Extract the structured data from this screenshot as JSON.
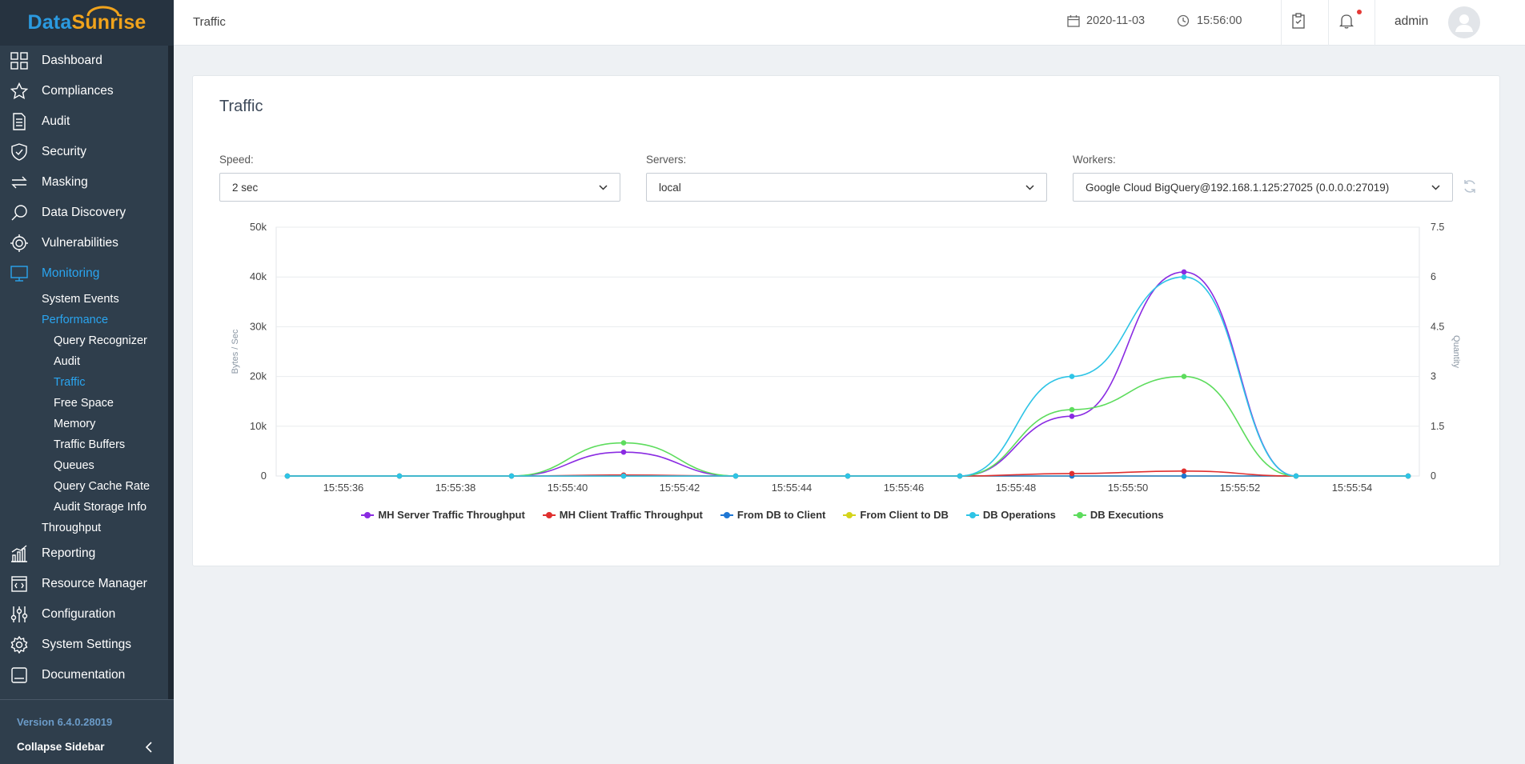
{
  "app": {
    "logo_data": "Data",
    "logo_sunrise": "Sunrise",
    "version": "Version 6.4.0.28019",
    "collapse_label": "Collapse Sidebar"
  },
  "nav": {
    "dashboard": "Dashboard",
    "compliances": "Compliances",
    "audit": "Audit",
    "security": "Security",
    "masking": "Masking",
    "data_discovery": "Data Discovery",
    "vulnerabilities": "Vulnerabilities",
    "monitoring": "Monitoring",
    "system_events": "System Events",
    "performance": "Performance",
    "perf_items": [
      "Query Recognizer",
      "Audit",
      "Traffic",
      "Free Space",
      "Memory",
      "Traffic Buffers",
      "Queues",
      "Query Cache Rate",
      "Audit Storage Info"
    ],
    "throughput": "Throughput",
    "reporting": "Reporting",
    "resource_manager": "Resource Manager",
    "configuration": "Configuration",
    "system_settings": "System Settings",
    "documentation": "Documentation"
  },
  "header": {
    "title": "Traffic",
    "date": "2020-11-03",
    "time": "15:56:00",
    "user": "admin"
  },
  "card": {
    "title": "Traffic",
    "speed_label": "Speed:",
    "speed_value": "2 sec",
    "servers_label": "Servers:",
    "servers_value": "local",
    "workers_label": "Workers:",
    "workers_value": "Google Cloud BigQuery@192.168.1.125:27025 (0.0.0.0:27019)"
  },
  "colors": {
    "accent": "#2aa5f0",
    "sidebar_bg": "#2f3e4c"
  },
  "chart_data": {
    "type": "line",
    "ylabel": "Bytes / Sec",
    "y2label": "Quantity",
    "ylim": [
      0,
      50000
    ],
    "y2lim": [
      0,
      7.5
    ],
    "yticks": [
      "0",
      "10k",
      "20k",
      "30k",
      "40k",
      "50k"
    ],
    "y2ticks": [
      "0",
      "1.5",
      "3",
      "4.5",
      "6",
      "7.5"
    ],
    "xtick_labels": [
      "15:55:36",
      "15:55:38",
      "15:55:40",
      "15:55:42",
      "15:55:44",
      "15:55:46",
      "15:55:48",
      "15:55:50",
      "15:55:52",
      "15:55:54"
    ],
    "x": [
      "15:55:35",
      "15:55:37",
      "15:55:39",
      "15:55:41",
      "15:55:43",
      "15:55:45",
      "15:55:47",
      "15:55:49",
      "15:55:51",
      "15:55:53",
      "15:55:55"
    ],
    "grid": true,
    "legend_position": "bottom",
    "series": [
      {
        "name": "MH Server Traffic Throughput",
        "axis": "left",
        "color": "#8a2be2",
        "values": [
          0,
          0,
          0,
          4800,
          0,
          0,
          0,
          12000,
          41000,
          0,
          0
        ]
      },
      {
        "name": "MH Client Traffic Throughput",
        "axis": "left",
        "color": "#e0302f",
        "values": [
          0,
          0,
          0,
          200,
          0,
          0,
          0,
          500,
          1000,
          0,
          0
        ]
      },
      {
        "name": "From DB to Client",
        "axis": "left",
        "color": "#1f77d4",
        "values": [
          0,
          0,
          0,
          0,
          0,
          0,
          0,
          0,
          0,
          0,
          0
        ]
      },
      {
        "name": "From Client to DB",
        "axis": "left",
        "color": "#d4d41a",
        "values": [
          0,
          0,
          0,
          0,
          0,
          0,
          0,
          0,
          0,
          0,
          0
        ]
      },
      {
        "name": "DB Operations",
        "axis": "right",
        "color": "#2ec4e6",
        "values": [
          0,
          0,
          0,
          0,
          0,
          0,
          0,
          3,
          6,
          0,
          0
        ]
      },
      {
        "name": "DB Executions",
        "axis": "right",
        "color": "#5ddc5d",
        "values": [
          0,
          0,
          0,
          1,
          0,
          0,
          0,
          2,
          3,
          0,
          0
        ]
      }
    ]
  }
}
